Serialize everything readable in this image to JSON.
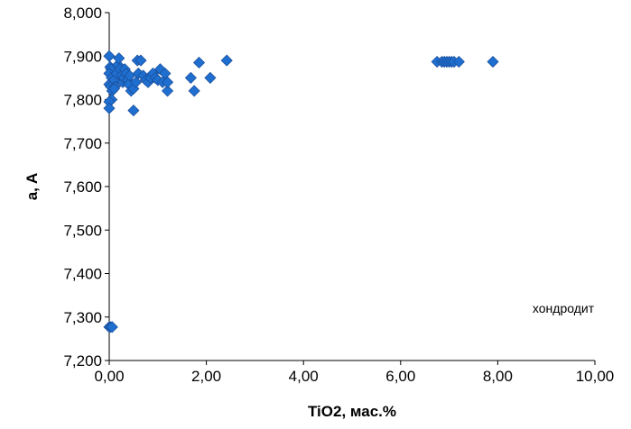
{
  "chart_data": {
    "type": "scatter",
    "title": "",
    "xlabel": "TiO2, мас.%",
    "ylabel": "a, A",
    "xlim": [
      0,
      10
    ],
    "ylim": [
      7.2,
      8.0
    ],
    "x_ticks": [
      0,
      2,
      4,
      6,
      8,
      10
    ],
    "y_ticks": [
      7.2,
      7.3,
      7.4,
      7.5,
      7.6,
      7.7,
      7.8,
      7.9,
      8.0
    ],
    "x_tick_labels": [
      "0,00",
      "2,00",
      "4,00",
      "6,00",
      "8,00",
      "10,00"
    ],
    "y_tick_labels": [
      "7,200",
      "7,300",
      "7,400",
      "7,500",
      "7,600",
      "7,700",
      "7,800",
      "7,900",
      "8,000"
    ],
    "grid": false,
    "legend": "none",
    "annotations": [
      {
        "text": "хондродит",
        "x": 9.35,
        "y": 7.31
      }
    ],
    "series": [
      {
        "marker": "diamond",
        "color": "#1f6fd1",
        "points": [
          [
            0.0,
            7.9
          ],
          [
            0.02,
            7.875
          ],
          [
            0.04,
            7.87
          ],
          [
            0.0,
            7.86
          ],
          [
            0.05,
            7.85
          ],
          [
            0.08,
            7.84
          ],
          [
            0.0,
            7.835
          ],
          [
            0.03,
            7.83
          ],
          [
            0.06,
            7.82
          ],
          [
            0.1,
            7.845
          ],
          [
            0.12,
            7.83
          ],
          [
            0.15,
            7.86
          ],
          [
            0.18,
            7.88
          ],
          [
            0.2,
            7.895
          ],
          [
            0.22,
            7.87
          ],
          [
            0.25,
            7.855
          ],
          [
            0.28,
            7.84
          ],
          [
            0.3,
            7.85
          ],
          [
            0.32,
            7.87
          ],
          [
            0.35,
            7.86
          ],
          [
            0.38,
            7.845
          ],
          [
            0.4,
            7.835
          ],
          [
            0.42,
            7.855
          ],
          [
            0.45,
            7.82
          ],
          [
            0.5,
            7.825
          ],
          [
            0.5,
            7.775
          ],
          [
            0.55,
            7.84
          ],
          [
            0.58,
            7.89
          ],
          [
            0.6,
            7.86
          ],
          [
            0.65,
            7.89
          ],
          [
            0.7,
            7.855
          ],
          [
            0.75,
            7.845
          ],
          [
            0.8,
            7.84
          ],
          [
            0.85,
            7.85
          ],
          [
            0.9,
            7.86
          ],
          [
            0.95,
            7.85
          ],
          [
            1.0,
            7.845
          ],
          [
            1.05,
            7.87
          ],
          [
            1.1,
            7.84
          ],
          [
            1.15,
            7.86
          ],
          [
            1.2,
            7.82
          ],
          [
            1.2,
            7.84
          ],
          [
            0.05,
            7.8
          ],
          [
            0.0,
            7.795
          ],
          [
            0.0,
            7.78
          ],
          [
            0.1,
            7.825
          ],
          [
            1.68,
            7.85
          ],
          [
            1.75,
            7.82
          ],
          [
            1.85,
            7.885
          ],
          [
            2.08,
            7.85
          ],
          [
            2.42,
            7.89
          ],
          [
            6.75,
            7.887
          ],
          [
            6.85,
            7.887
          ],
          [
            6.9,
            7.887
          ],
          [
            6.95,
            7.887
          ],
          [
            7.0,
            7.887
          ],
          [
            7.05,
            7.887
          ],
          [
            7.1,
            7.887
          ],
          [
            7.2,
            7.887
          ],
          [
            7.9,
            7.887
          ],
          [
            0.0,
            7.277
          ],
          [
            0.03,
            7.277
          ],
          [
            0.06,
            7.277
          ]
        ]
      }
    ]
  }
}
